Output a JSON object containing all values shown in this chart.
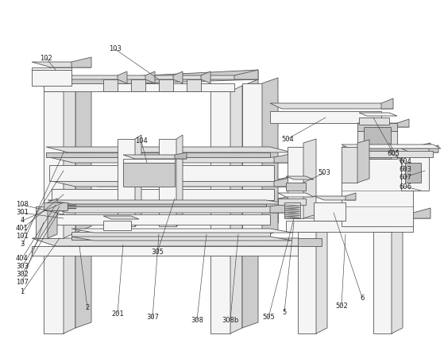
{
  "bg_color": "#ffffff",
  "lc": "#555555",
  "lc_dark": "#333333",
  "lw": 0.6,
  "fl": "#f5f5f5",
  "fm": "#e0e0e0",
  "fd": "#cccccc",
  "fdk": "#bbbbbb",
  "figsize": [
    5.59,
    4.32
  ],
  "dpi": 100
}
